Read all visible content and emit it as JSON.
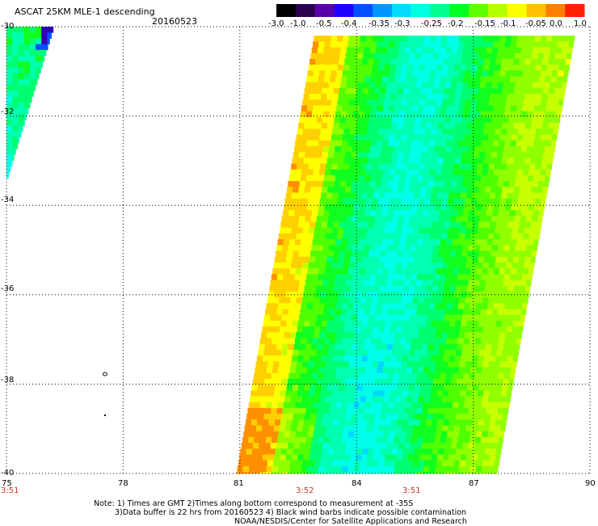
{
  "header": {
    "title": "ASCAT 25KM MLE-1 descending",
    "date": "20160523"
  },
  "colorbar": {
    "tick_labels": [
      "-3.0",
      "-1.0",
      "-0.5",
      "-0.4",
      "-0.35",
      "-0.3",
      "-0.25",
      "-0.2",
      "-0.15",
      "-0.1",
      "-0.05",
      "0.0",
      "1.0"
    ],
    "colors": [
      "#000000",
      "#2a0050",
      "#5a00a8",
      "#2000ff",
      "#0050ff",
      "#0096ff",
      "#00dcff",
      "#00ffe0",
      "#00ff90",
      "#00ff20",
      "#60ff00",
      "#b4ff00",
      "#ffff00",
      "#ffc000",
      "#ff8000",
      "#ff2000"
    ]
  },
  "chart_data": {
    "type": "heatmap",
    "lon_ticks": [
      "75",
      "78",
      "81",
      "84",
      "87",
      "90"
    ],
    "lat_ticks": [
      "-30",
      "-32",
      "-34",
      "-36",
      "-38",
      "-40"
    ],
    "lon_range": [
      75,
      90
    ],
    "lat_range": [
      -40,
      -30
    ],
    "grid": true,
    "time_labels": [
      {
        "text": "3:51",
        "lon": 75
      },
      {
        "text": "3:52",
        "lon": 82.7
      },
      {
        "text": "3:51",
        "lon": 85.5
      }
    ],
    "swaths": [
      {
        "name": "west-swath",
        "top_lat": -30,
        "bottom_lat": -33.4,
        "west_lon_top": 75.0,
        "east_lon_top": 76.2,
        "west_lon_bottom": 75.0,
        "east_lon_bottom": 75.0
      },
      {
        "name": "main-swath",
        "top_lat": -30.2,
        "bottom_lat": -40,
        "west_lon_top": 82.9,
        "east_lon_top": 89.6,
        "west_lon_bottom": 80.9,
        "east_lon_bottom": 87.6
      }
    ]
  },
  "footer": {
    "note_line1": "Note: 1) Times are GMT 2)Times along bottom correspond to measurement at -35S",
    "note_line2": "3)Data buffer is 22 hrs from 20160523 4) Black wind barbs indicate possible contamination",
    "note_line3": "NOAA/NESDIS/Center for Satellite Applications and Research"
  }
}
